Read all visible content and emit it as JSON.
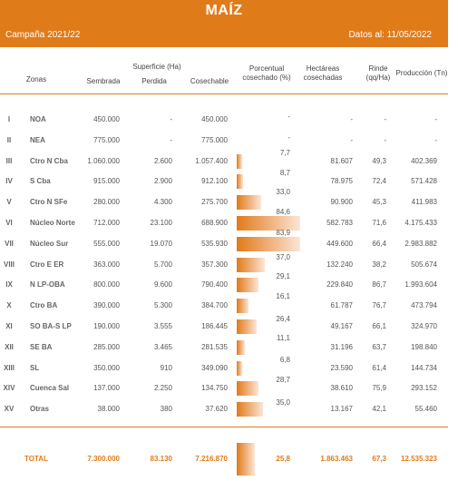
{
  "header": {
    "title": "MAÍZ",
    "campaign": "Campaña 2021/22",
    "date": "Datos al: 11/05/2022"
  },
  "columns": {
    "zonas": "Zonas",
    "superficie": "Superficie (Ha)",
    "sembrada": "Sembrada",
    "perdida": "Perdida",
    "cosechable": "Cosechable",
    "porcentual": "Porcentual cosechado (%)",
    "hectareas": "Hectáreas cosechadas",
    "rinde": "Rinde (qq/Ha)",
    "produccion": "Producción (Tn)"
  },
  "rows": [
    {
      "num": "I",
      "zona": "NOA",
      "sembrada": "450.000",
      "perdida": "-",
      "cosechable": "450.000",
      "pct_text": "-",
      "pct": 0,
      "hectareas": "-",
      "rinde": "-",
      "produccion": "-"
    },
    {
      "num": "II",
      "zona": "NEA",
      "sembrada": "775.000",
      "perdida": "-",
      "cosechable": "775.000",
      "pct_text": "-",
      "pct": 0,
      "hectareas": "-",
      "rinde": "-",
      "produccion": "-"
    },
    {
      "num": "III",
      "zona": "Ctro N Cba",
      "sembrada": "1.060.000",
      "perdida": "2.600",
      "cosechable": "1.057.400",
      "pct_text": "7,7",
      "pct": 7.7,
      "hectareas": "81.607",
      "rinde": "49,3",
      "produccion": "402.369"
    },
    {
      "num": "IV",
      "zona": "S Cba",
      "sembrada": "915.000",
      "perdida": "2.900",
      "cosechable": "912.100",
      "pct_text": "8,7",
      "pct": 8.7,
      "hectareas": "78.975",
      "rinde": "72,4",
      "produccion": "571.428"
    },
    {
      "num": "V",
      "zona": "Ctro N SFe",
      "sembrada": "280.000",
      "perdida": "4.300",
      "cosechable": "275.700",
      "pct_text": "33,0",
      "pct": 33.0,
      "hectareas": "90.900",
      "rinde": "45,3",
      "produccion": "411.983"
    },
    {
      "num": "VI",
      "zona": "Núcleo Norte",
      "sembrada": "712.000",
      "perdida": "23.100",
      "cosechable": "688.900",
      "pct_text": "84,6",
      "pct": 84.6,
      "hectareas": "582.783",
      "rinde": "71,6",
      "produccion": "4.175.433"
    },
    {
      "num": "VII",
      "zona": "Núcleo Sur",
      "sembrada": "555.000",
      "perdida": "19.070",
      "cosechable": "535.930",
      "pct_text": "83,9",
      "pct": 83.9,
      "hectareas": "449.600",
      "rinde": "66,4",
      "produccion": "2.983.882"
    },
    {
      "num": "VIII",
      "zona": "Ctro E ER",
      "sembrada": "363.000",
      "perdida": "5.700",
      "cosechable": "357.300",
      "pct_text": "37,0",
      "pct": 37.0,
      "hectareas": "132.240",
      "rinde": "38,2",
      "produccion": "505.674"
    },
    {
      "num": "IX",
      "zona": "N LP-OBA",
      "sembrada": "800.000",
      "perdida": "9.600",
      "cosechable": "790.400",
      "pct_text": "29,1",
      "pct": 29.1,
      "hectareas": "229.840",
      "rinde": "86,7",
      "produccion": "1.993.604"
    },
    {
      "num": "X",
      "zona": "Ctro BA",
      "sembrada": "390.000",
      "perdida": "5.300",
      "cosechable": "384.700",
      "pct_text": "16,1",
      "pct": 16.1,
      "hectareas": "61.787",
      "rinde": "76,7",
      "produccion": "473.794"
    },
    {
      "num": "XI",
      "zona": "SO BA-S LP",
      "sembrada": "190.000",
      "perdida": "3.555",
      "cosechable": "186.445",
      "pct_text": "26,4",
      "pct": 26.4,
      "hectareas": "49.167",
      "rinde": "66,1",
      "produccion": "324.970"
    },
    {
      "num": "XII",
      "zona": "SE BA",
      "sembrada": "285.000",
      "perdida": "3.465",
      "cosechable": "281.535",
      "pct_text": "11,1",
      "pct": 11.1,
      "hectareas": "31.196",
      "rinde": "63,7",
      "produccion": "198.840"
    },
    {
      "num": "XIII",
      "zona": "SL",
      "sembrada": "350.000",
      "perdida": "910",
      "cosechable": "349.090",
      "pct_text": "6,8",
      "pct": 6.8,
      "hectareas": "23.590",
      "rinde": "61,4",
      "produccion": "144.734"
    },
    {
      "num": "XIV",
      "zona": "Cuenca Sal",
      "sembrada": "137.000",
      "perdida": "2.250",
      "cosechable": "134.750",
      "pct_text": "28,7",
      "pct": 28.7,
      "hectareas": "38.610",
      "rinde": "75,9",
      "produccion": "293.152"
    },
    {
      "num": "XV",
      "zona": "Otras",
      "sembrada": "38.000",
      "perdida": "380",
      "cosechable": "37.620",
      "pct_text": "35,0",
      "pct": 35.0,
      "hectareas": "13.167",
      "rinde": "42,1",
      "produccion": "55.460"
    }
  ],
  "total": {
    "label": "TOTAL",
    "sembrada": "7.300.000",
    "perdida": "83.130",
    "cosechable": "7.216.870",
    "pct_text": "25,8",
    "pct": 25.8,
    "hectareas": "1.863.463",
    "rinde": "67,3",
    "produccion": "12.535.323"
  },
  "colors": {
    "accent": "#e07b1a"
  }
}
